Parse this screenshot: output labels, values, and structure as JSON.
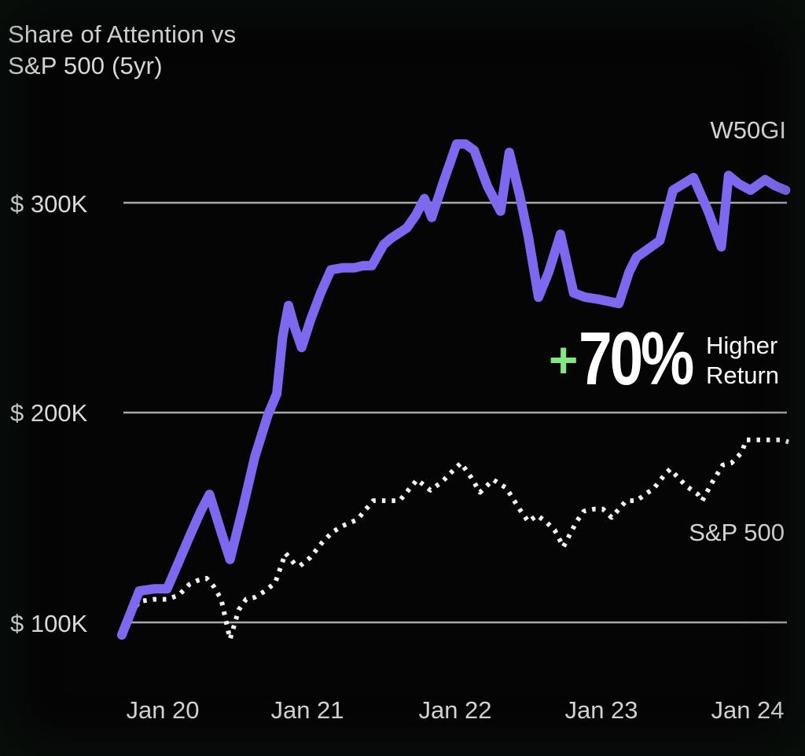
{
  "title": {
    "line1": "Share of Attention vs",
    "line2": "S&P 500 (5yr)"
  },
  "annotation": {
    "plus": "+",
    "value": "70%",
    "label_line1": "Higher",
    "label_line2": "Return",
    "plus_color": "#82e882",
    "text_color": "#ffffff"
  },
  "colors": {
    "background": "#050505",
    "w50gi_line": "#7c69ef",
    "sp500_line": "#f2f2f2",
    "gridline": "#a8a8a8",
    "axis_text": "#d6d6d6"
  },
  "chart_data": {
    "type": "line",
    "title": "Share of Attention vs S&P 500 (5yr)",
    "xlabel": "",
    "ylabel": "",
    "grid": "horizontal-only",
    "legend_position": "inline-right",
    "xlim": [
      2019.7,
      2024.35
    ],
    "ylim": [
      80,
      345
    ],
    "y_unit": "USD thousands",
    "y_ticks": [
      {
        "value": 100,
        "label": "$ 100K"
      },
      {
        "value": 200,
        "label": "$ 200K"
      },
      {
        "value": 300,
        "label": "$ 300K"
      }
    ],
    "x_ticks": [
      {
        "t": 2020,
        "label": "Jan 20"
      },
      {
        "t": 2021,
        "label": "Jan 21"
      },
      {
        "t": 2022,
        "label": "Jan 22"
      },
      {
        "t": 2023,
        "label": "Jan 23"
      },
      {
        "t": 2024,
        "label": "Jan 24"
      }
    ],
    "series": [
      {
        "name": "W50GI",
        "style": "solid",
        "color": "#7c69ef",
        "points": [
          [
            2019.72,
            94
          ],
          [
            2019.84,
            115
          ],
          [
            2019.94,
            116
          ],
          [
            2020.03,
            116
          ],
          [
            2020.11,
            129
          ],
          [
            2020.19,
            142
          ],
          [
            2020.26,
            153
          ],
          [
            2020.32,
            161
          ],
          [
            2020.4,
            143
          ],
          [
            2020.46,
            130
          ],
          [
            2020.55,
            155
          ],
          [
            2020.63,
            179
          ],
          [
            2020.72,
            199
          ],
          [
            2020.78,
            209
          ],
          [
            2020.82,
            236
          ],
          [
            2020.86,
            251
          ],
          [
            2020.9,
            241
          ],
          [
            2020.95,
            231
          ],
          [
            2021.01,
            244
          ],
          [
            2021.08,
            257
          ],
          [
            2021.15,
            268
          ],
          [
            2021.23,
            269
          ],
          [
            2021.31,
            269
          ],
          [
            2021.37,
            270
          ],
          [
            2021.43,
            270
          ],
          [
            2021.51,
            280
          ],
          [
            2021.56,
            283
          ],
          [
            2021.67,
            288
          ],
          [
            2021.73,
            294
          ],
          [
            2021.79,
            302
          ],
          [
            2021.84,
            293
          ],
          [
            2021.92,
            310
          ],
          [
            2022.01,
            328
          ],
          [
            2022.07,
            328
          ],
          [
            2022.13,
            325
          ],
          [
            2022.22,
            308
          ],
          [
            2022.31,
            296
          ],
          [
            2022.37,
            324
          ],
          [
            2022.44,
            304
          ],
          [
            2022.5,
            284
          ],
          [
            2022.57,
            255
          ],
          [
            2022.64,
            267
          ],
          [
            2022.72,
            285
          ],
          [
            2022.81,
            257
          ],
          [
            2022.89,
            255
          ],
          [
            2022.98,
            254
          ],
          [
            2023.05,
            253
          ],
          [
            2023.12,
            252
          ],
          [
            2023.19,
            267
          ],
          [
            2023.24,
            274
          ],
          [
            2023.32,
            278
          ],
          [
            2023.4,
            282
          ],
          [
            2023.49,
            306
          ],
          [
            2023.56,
            309
          ],
          [
            2023.63,
            312
          ],
          [
            2023.73,
            296
          ],
          [
            2023.82,
            279
          ],
          [
            2023.87,
            313
          ],
          [
            2023.94,
            309
          ],
          [
            2024.02,
            306
          ],
          [
            2024.12,
            311
          ],
          [
            2024.19,
            308
          ],
          [
            2024.26,
            306
          ]
        ]
      },
      {
        "name": "S&P 500",
        "style": "dotted",
        "color": "#f2f2f2",
        "points": [
          [
            2019.74,
            100
          ],
          [
            2019.84,
            110
          ],
          [
            2019.94,
            111
          ],
          [
            2020.03,
            111
          ],
          [
            2020.11,
            113
          ],
          [
            2020.18,
            118
          ],
          [
            2020.24,
            120
          ],
          [
            2020.3,
            121
          ],
          [
            2020.35,
            117
          ],
          [
            2020.4,
            111
          ],
          [
            2020.46,
            92
          ],
          [
            2020.52,
            106
          ],
          [
            2020.57,
            111
          ],
          [
            2020.63,
            112
          ],
          [
            2020.7,
            115
          ],
          [
            2020.77,
            119
          ],
          [
            2020.84,
            133
          ],
          [
            2020.9,
            128
          ],
          [
            2020.94,
            127
          ],
          [
            2021.01,
            131
          ],
          [
            2021.09,
            138
          ],
          [
            2021.16,
            143
          ],
          [
            2021.23,
            146
          ],
          [
            2021.33,
            149
          ],
          [
            2021.44,
            158
          ],
          [
            2021.52,
            158
          ],
          [
            2021.62,
            158
          ],
          [
            2021.74,
            168
          ],
          [
            2021.83,
            163
          ],
          [
            2021.91,
            167
          ],
          [
            2021.98,
            172
          ],
          [
            2022.04,
            176
          ],
          [
            2022.11,
            169
          ],
          [
            2022.17,
            162
          ],
          [
            2022.26,
            168
          ],
          [
            2022.35,
            164
          ],
          [
            2022.44,
            154
          ],
          [
            2022.5,
            148
          ],
          [
            2022.56,
            151
          ],
          [
            2022.62,
            148
          ],
          [
            2022.68,
            144
          ],
          [
            2022.74,
            136
          ],
          [
            2022.83,
            148
          ],
          [
            2022.88,
            153
          ],
          [
            2022.95,
            154
          ],
          [
            2023.01,
            154
          ],
          [
            2023.07,
            150
          ],
          [
            2023.17,
            158
          ],
          [
            2023.24,
            158
          ],
          [
            2023.36,
            164
          ],
          [
            2023.44,
            171
          ],
          [
            2023.47,
            173
          ],
          [
            2023.58,
            165
          ],
          [
            2023.66,
            161
          ],
          [
            2023.69,
            158
          ],
          [
            2023.76,
            167
          ],
          [
            2023.83,
            175
          ],
          [
            2023.89,
            176
          ],
          [
            2023.96,
            181
          ],
          [
            2023.99,
            187
          ],
          [
            2024.08,
            187
          ],
          [
            2024.16,
            187
          ],
          [
            2024.23,
            187
          ],
          [
            2024.28,
            186
          ]
        ]
      }
    ]
  }
}
